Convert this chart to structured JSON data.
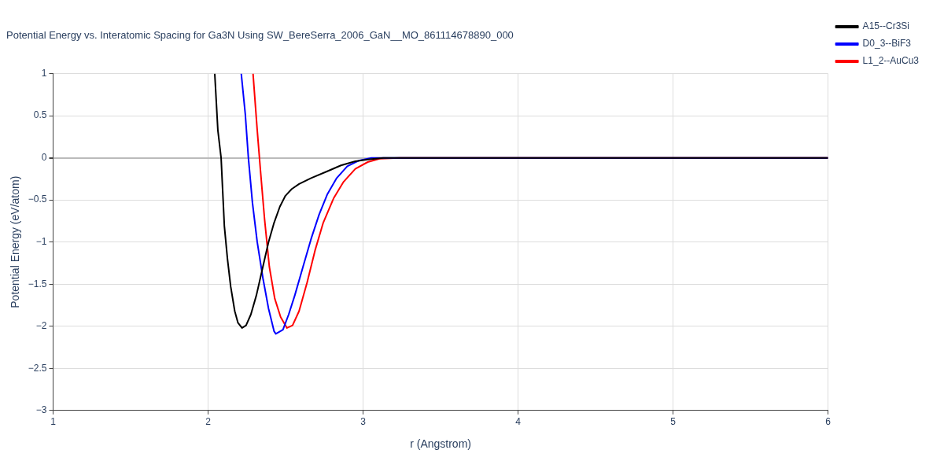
{
  "chart_data": {
    "type": "line",
    "title": "Potential Energy vs. Interatomic Spacing for Ga3N Using SW_BereSerra_2006_GaN__MO_861114678890_000",
    "xlabel": "r (Angstrom)",
    "ylabel": "Potential Energy (eV/atom)",
    "xlim": [
      1,
      6
    ],
    "xticks": [
      1,
      2,
      3,
      4,
      5,
      6
    ],
    "ylim": [
      -3,
      1
    ],
    "yticks": [
      {
        "value": -3,
        "label": "−3"
      },
      {
        "value": -2.5,
        "label": "−2.5"
      },
      {
        "value": -2,
        "label": "−2"
      },
      {
        "value": -1.5,
        "label": "−1.5"
      },
      {
        "value": -1,
        "label": "−1"
      },
      {
        "value": -0.5,
        "label": "−0.5"
      },
      0,
      0.5,
      1
    ],
    "grid": true,
    "legend": "top right",
    "marker": "none",
    "line_style": "solid",
    "series": [
      {
        "name": "A15--Cr3Si",
        "color": "#000000",
        "x": [
          2.043,
          2.063,
          2.084,
          2.105,
          2.125,
          2.146,
          2.172,
          2.193,
          2.219,
          2.245,
          2.276,
          2.312,
          2.354,
          2.39,
          2.426,
          2.463,
          2.499,
          2.54,
          2.587,
          2.665,
          2.769,
          2.857,
          2.95,
          3.03,
          3.13,
          6
        ],
        "values": [
          1,
          0.33,
          0,
          -0.81,
          -1.2,
          -1.53,
          -1.82,
          -1.96,
          -2.02,
          -1.99,
          -1.86,
          -1.63,
          -1.29,
          -1.0,
          -0.77,
          -0.58,
          -0.45,
          -0.37,
          -0.31,
          -0.24,
          -0.16,
          -0.09,
          -0.04,
          -0.02,
          0,
          0
        ]
      },
      {
        "name": "D0_3--BiF3",
        "color": "#0000ff",
        "x": [
          2.214,
          2.24,
          2.26,
          2.286,
          2.317,
          2.354,
          2.39,
          2.426,
          2.437,
          2.483,
          2.52,
          2.56,
          2.613,
          2.665,
          2.717,
          2.77,
          2.83,
          2.898,
          2.976,
          3.054,
          3.18,
          6
        ],
        "values": [
          1,
          0.52,
          0,
          -0.53,
          -1.0,
          -1.43,
          -1.79,
          -2.06,
          -2.09,
          -2.04,
          -1.86,
          -1.63,
          -1.29,
          -0.96,
          -0.67,
          -0.43,
          -0.24,
          -0.1,
          -0.03,
          0,
          0,
          0
        ]
      },
      {
        "name": "L1_2--AuCu3",
        "color": "#ff0000",
        "x": [
          2.29,
          2.317,
          2.338,
          2.364,
          2.395,
          2.43,
          2.468,
          2.509,
          2.545,
          2.587,
          2.639,
          2.69,
          2.743,
          2.81,
          2.872,
          2.95,
          3.03,
          3.106,
          3.235,
          6
        ],
        "values": [
          1,
          0.33,
          -0.15,
          -0.72,
          -1.29,
          -1.67,
          -1.89,
          -2.02,
          -1.99,
          -1.82,
          -1.48,
          -1.1,
          -0.77,
          -0.48,
          -0.29,
          -0.13,
          -0.05,
          -0.01,
          0,
          0
        ]
      }
    ]
  }
}
